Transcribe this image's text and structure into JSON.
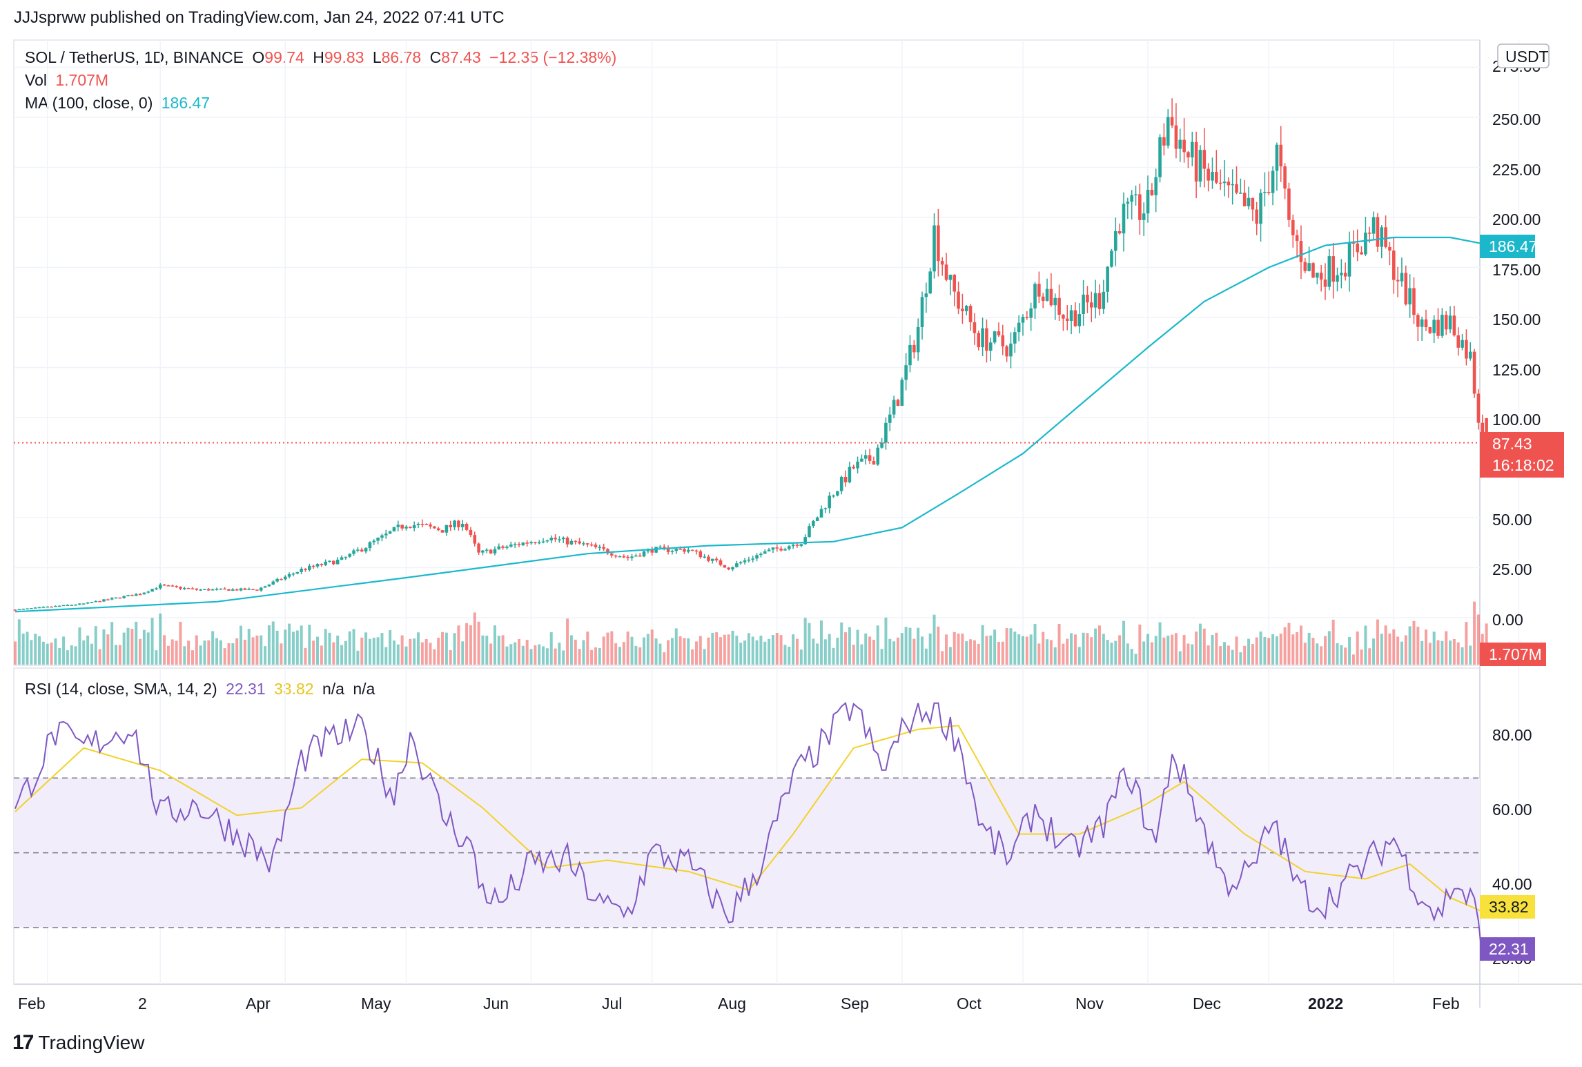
{
  "header": {
    "published": "JJJsprww published on TradingView.com, Jan 24, 2022 07:41 UTC"
  },
  "symbol": {
    "name": "SOL / TetherUS, 1D, BINANCE",
    "open_label": "O",
    "open": "99.74",
    "high_label": "H",
    "high": "99.83",
    "low_label": "L",
    "low": "86.78",
    "close_label": "C",
    "close": "87.43",
    "change": "−12.35 (−12.38%)"
  },
  "volume": {
    "label": "Vol",
    "value": "1.707M"
  },
  "ma": {
    "label": "MA (100, close, 0)",
    "value": "186.47"
  },
  "rsi": {
    "label": "RSI (14, close, SMA, 14, 2)",
    "value": "22.31",
    "sma": "33.82",
    "extra1": "n/a",
    "extra2": "n/a"
  },
  "currency_button": "USDT",
  "price_axis": {
    "ticks": [
      "275.00",
      "250.00",
      "225.00",
      "200.00",
      "175.00",
      "150.00",
      "125.00",
      "100.00",
      "50.00",
      "25.00",
      "0.00"
    ]
  },
  "rsi_axis": {
    "ticks": [
      "80.00",
      "60.00",
      "40.00",
      "20.00"
    ]
  },
  "badges": {
    "ma": "186.47",
    "price": "87.43",
    "countdown": "16:18:02",
    "volume": "1.707M",
    "rsi_sma": "33.82",
    "rsi": "22.31"
  },
  "time_axis": {
    "labels": [
      "Feb",
      "2",
      "Apr",
      "May",
      "Jun",
      "Jul",
      "Aug",
      "Sep",
      "Oct",
      "Nov",
      "Dec",
      "2022",
      "Feb"
    ]
  },
  "footer": {
    "brand": "TradingView"
  },
  "colors": {
    "up": "#26a69a",
    "down": "#ef5350",
    "ma": "#1bb8cc",
    "rsi": "#7e57c2",
    "rsi_sma": "#f2d22b",
    "rsi_band": "#f1edfb"
  },
  "chart_data": [
    {
      "type": "candlestick",
      "title": "SOL / TetherUS, 1D, BINANCE",
      "y_axis": "USDT",
      "ylim": [
        0,
        275
      ],
      "close_path": [
        [
          "2021-01-24",
          4
        ],
        [
          "2021-02-10",
          7
        ],
        [
          "2021-02-24",
          12
        ],
        [
          "2021-03-01",
          16
        ],
        [
          "2021-03-10",
          14
        ],
        [
          "2021-03-25",
          14
        ],
        [
          "2021-04-05",
          24
        ],
        [
          "2021-04-15",
          29
        ],
        [
          "2021-04-25",
          40
        ],
        [
          "2021-05-01",
          47
        ],
        [
          "2021-05-10",
          44
        ],
        [
          "2021-05-15",
          48
        ],
        [
          "2021-05-19",
          32
        ],
        [
          "2021-05-25",
          35
        ],
        [
          "2021-06-05",
          40
        ],
        [
          "2021-06-15",
          36
        ],
        [
          "2021-06-25",
          30
        ],
        [
          "2021-07-01",
          34
        ],
        [
          "2021-07-10",
          34
        ],
        [
          "2021-07-20",
          25
        ],
        [
          "2021-07-28",
          32
        ],
        [
          "2021-08-07",
          38
        ],
        [
          "2021-08-14",
          60
        ],
        [
          "2021-08-20",
          75
        ],
        [
          "2021-08-25",
          80
        ],
        [
          "2021-08-31",
          110
        ],
        [
          "2021-09-05",
          145
        ],
        [
          "2021-09-09",
          193
        ],
        [
          "2021-09-13",
          165
        ],
        [
          "2021-09-20",
          140
        ],
        [
          "2021-09-28",
          135
        ],
        [
          "2021-10-05",
          168
        ],
        [
          "2021-10-12",
          150
        ],
        [
          "2021-10-20",
          160
        ],
        [
          "2021-10-25",
          200
        ],
        [
          "2021-11-01",
          205
        ],
        [
          "2021-11-06",
          250
        ],
        [
          "2021-11-11",
          230
        ],
        [
          "2021-11-20",
          212
        ],
        [
          "2021-11-28",
          200
        ],
        [
          "2021-12-03",
          232
        ],
        [
          "2021-12-06",
          195
        ],
        [
          "2021-12-12",
          170
        ],
        [
          "2021-12-20",
          178
        ],
        [
          "2021-12-27",
          195
        ],
        [
          "2022-01-01",
          175
        ],
        [
          "2022-01-08",
          145
        ],
        [
          "2022-01-15",
          148
        ],
        [
          "2022-01-20",
          130
        ],
        [
          "2022-01-22",
          100
        ],
        [
          "2022-01-24",
          87.43
        ]
      ],
      "last_candle": {
        "open": 99.74,
        "high": 99.83,
        "low": 86.78,
        "close": 87.43
      },
      "ma_100": [
        [
          "2021-01-24",
          3
        ],
        [
          "2021-03-15",
          8
        ],
        [
          "2021-05-01",
          20
        ],
        [
          "2021-06-15",
          32
        ],
        [
          "2021-07-15",
          36
        ],
        [
          "2021-08-15",
          38
        ],
        [
          "2021-09-01",
          45
        ],
        [
          "2021-09-15",
          62
        ],
        [
          "2021-10-01",
          82
        ],
        [
          "2021-10-15",
          106
        ],
        [
          "2021-11-01",
          135
        ],
        [
          "2021-11-15",
          158
        ],
        [
          "2021-12-01",
          175
        ],
        [
          "2021-12-15",
          186
        ],
        [
          "2022-01-01",
          190
        ],
        [
          "2022-01-15",
          190
        ],
        [
          "2022-01-24",
          186.47
        ]
      ]
    },
    {
      "type": "bar",
      "title": "Vol",
      "last_value": "1.707M"
    },
    {
      "type": "line",
      "title": "RSI (14, close, SMA, 14, 2)",
      "ylim": [
        17,
        90
      ],
      "band": [
        30,
        70
      ],
      "midline": 50,
      "series": [
        {
          "name": "RSI",
          "points": [
            [
              "2021-01-24",
              61
            ],
            [
              "2021-02-03",
              82
            ],
            [
              "2021-02-10",
              78
            ],
            [
              "2021-02-22",
              84
            ],
            [
              "2021-03-01",
              60
            ],
            [
              "2021-03-10",
              63
            ],
            [
              "2021-03-20",
              55
            ],
            [
              "2021-03-29",
              47
            ],
            [
              "2021-04-05",
              75
            ],
            [
              "2021-04-12",
              80
            ],
            [
              "2021-04-20",
              83
            ],
            [
              "2021-04-28",
              65
            ],
            [
              "2021-05-02",
              82
            ],
            [
              "2021-05-10",
              60
            ],
            [
              "2021-05-17",
              52
            ],
            [
              "2021-05-19",
              42
            ],
            [
              "2021-05-24",
              36
            ],
            [
              "2021-06-01",
              47
            ],
            [
              "2021-06-10",
              48
            ],
            [
              "2021-06-18",
              36
            ],
            [
              "2021-06-25",
              34
            ],
            [
              "2021-07-01",
              50
            ],
            [
              "2021-07-10",
              47
            ],
            [
              "2021-07-20",
              33
            ],
            [
              "2021-07-28",
              47
            ],
            [
              "2021-08-05",
              70
            ],
            [
              "2021-08-13",
              80
            ],
            [
              "2021-08-20",
              90
            ],
            [
              "2021-08-27",
              72
            ],
            [
              "2021-09-03",
              86
            ],
            [
              "2021-09-09",
              89
            ],
            [
              "2021-09-15",
              80
            ],
            [
              "2021-09-21",
              56
            ],
            [
              "2021-09-28",
              48
            ],
            [
              "2021-10-04",
              62
            ],
            [
              "2021-10-12",
              50
            ],
            [
              "2021-10-20",
              56
            ],
            [
              "2021-10-27",
              72
            ],
            [
              "2021-11-03",
              52
            ],
            [
              "2021-11-07",
              77
            ],
            [
              "2021-11-13",
              62
            ],
            [
              "2021-11-20",
              42
            ],
            [
              "2021-11-27",
              45
            ],
            [
              "2021-12-02",
              59
            ],
            [
              "2021-12-08",
              41
            ],
            [
              "2021-12-14",
              36
            ],
            [
              "2021-12-20",
              42
            ],
            [
              "2021-12-27",
              49
            ],
            [
              "2022-01-01",
              54
            ],
            [
              "2022-01-07",
              40
            ],
            [
              "2022-01-12",
              33
            ],
            [
              "2022-01-16",
              42
            ],
            [
              "2022-01-21",
              36
            ],
            [
              "2022-01-23",
              22
            ],
            [
              "2022-01-24",
              22.31
            ]
          ]
        },
        {
          "name": "SMA",
          "points": [
            [
              "2021-01-24",
              61
            ],
            [
              "2021-02-10",
              78
            ],
            [
              "2021-03-01",
              72
            ],
            [
              "2021-03-20",
              60
            ],
            [
              "2021-04-05",
              62
            ],
            [
              "2021-04-20",
              75
            ],
            [
              "2021-05-05",
              74
            ],
            [
              "2021-05-20",
              62
            ],
            [
              "2021-06-05",
              46
            ],
            [
              "2021-06-20",
              48
            ],
            [
              "2021-07-10",
              45
            ],
            [
              "2021-07-25",
              40
            ],
            [
              "2021-08-05",
              55
            ],
            [
              "2021-08-20",
              78
            ],
            [
              "2021-09-05",
              83
            ],
            [
              "2021-09-15",
              84
            ],
            [
              "2021-09-30",
              55
            ],
            [
              "2021-10-15",
              55
            ],
            [
              "2021-10-30",
              62
            ],
            [
              "2021-11-10",
              69
            ],
            [
              "2021-11-25",
              55
            ],
            [
              "2021-12-10",
              45
            ],
            [
              "2021-12-25",
              43
            ],
            [
              "2022-01-05",
              47
            ],
            [
              "2022-01-15",
              38
            ],
            [
              "2022-01-24",
              33.82
            ]
          ]
        }
      ]
    }
  ]
}
